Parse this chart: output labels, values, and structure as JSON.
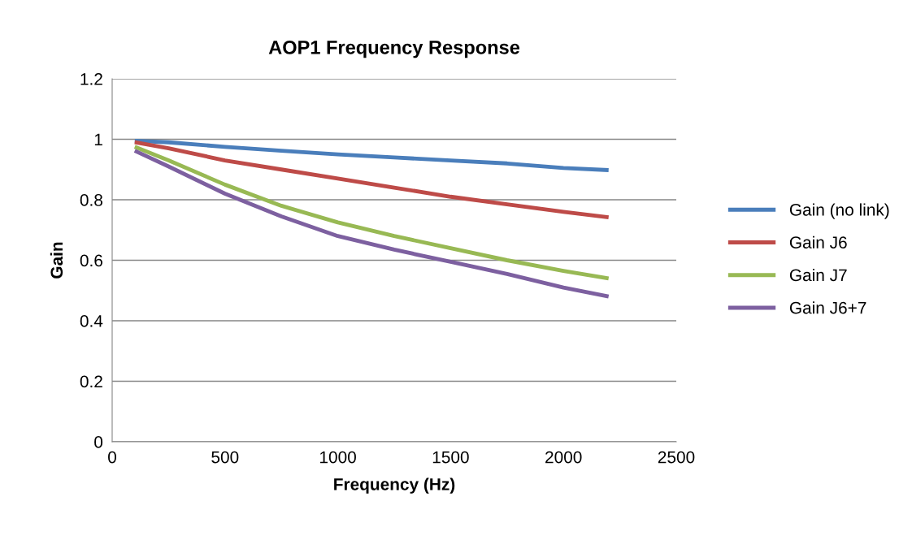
{
  "chart_data": {
    "type": "line",
    "title": "AOP1 Frequency Response",
    "xlabel": "Frequency (Hz)",
    "ylabel": "Gain",
    "x": [
      100,
      250,
      500,
      750,
      1000,
      1250,
      1500,
      1750,
      2000,
      2200
    ],
    "series": [
      {
        "name": "Gain (no link)",
        "color": "#4a7ebb",
        "values": [
          0.995,
          0.99,
          0.975,
          0.962,
          0.95,
          0.94,
          0.93,
          0.92,
          0.905,
          0.898
        ]
      },
      {
        "name": "Gain J6",
        "color": "#be4b48",
        "values": [
          0.99,
          0.97,
          0.93,
          0.9,
          0.87,
          0.84,
          0.81,
          0.785,
          0.76,
          0.742
        ]
      },
      {
        "name": "Gain J7",
        "color": "#98b954",
        "values": [
          0.975,
          0.93,
          0.85,
          0.78,
          0.725,
          0.68,
          0.64,
          0.6,
          0.565,
          0.54
        ]
      },
      {
        "name": "Gain J6+7",
        "color": "#7d60a0",
        "values": [
          0.962,
          0.91,
          0.82,
          0.745,
          0.68,
          0.635,
          0.595,
          0.555,
          0.51,
          0.48
        ]
      }
    ],
    "xlim": [
      0,
      2500
    ],
    "xticks": [
      0,
      500,
      1000,
      1500,
      2000,
      2500
    ],
    "ylim": [
      0,
      1.2
    ],
    "yticks": [
      0,
      0.2,
      0.4,
      0.6,
      0.8,
      1,
      1.2
    ],
    "grid": "y",
    "legend": "right",
    "marker": "none",
    "line_style": "solid"
  }
}
